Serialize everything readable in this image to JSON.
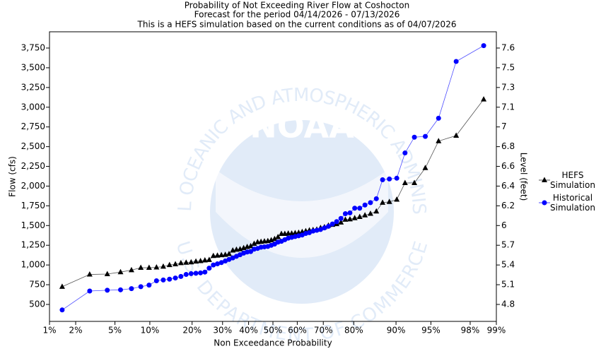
{
  "chart_data": {
    "type": "scatter-line",
    "title": "Probability of Not Exceeding River Flow at Coshocton",
    "subtitle": "Forecast for the period  04/14/2026 - 07/13/2026",
    "note": "This is a HEFS simulation based on the current conditions as of 04/07/2026",
    "x_label": "Non Exceedance Probability",
    "y_label": "Flow (cfs)",
    "y2_label": "Level (feet)",
    "x_scale": "normal-probability",
    "xlim": [
      1,
      99
    ],
    "xticks": [
      {
        "value": 1,
        "label": "1%"
      },
      {
        "value": 2,
        "label": "2%"
      },
      {
        "value": 5,
        "label": "5%"
      },
      {
        "value": 10,
        "label": "10%"
      },
      {
        "value": 20,
        "label": "20%"
      },
      {
        "value": 30,
        "label": "30%"
      },
      {
        "value": 40,
        "label": "40%"
      },
      {
        "value": 50,
        "label": "50%"
      },
      {
        "value": 60,
        "label": "60%"
      },
      {
        "value": 70,
        "label": "70%"
      },
      {
        "value": 80,
        "label": "80%"
      },
      {
        "value": 90,
        "label": "90%"
      },
      {
        "value": 95,
        "label": "95%"
      },
      {
        "value": 98,
        "label": "98%"
      },
      {
        "value": 99,
        "label": "99%"
      }
    ],
    "ylim": [
      285,
      3956
    ],
    "yticks": [
      {
        "value": 500,
        "label": "500"
      },
      {
        "value": 750,
        "label": "750"
      },
      {
        "value": 1000,
        "label": "1,000"
      },
      {
        "value": 1250,
        "label": "1,250"
      },
      {
        "value": 1500,
        "label": "1,500"
      },
      {
        "value": 1750,
        "label": "1,750"
      },
      {
        "value": 2000,
        "label": "2,000"
      },
      {
        "value": 2250,
        "label": "2,250"
      },
      {
        "value": 2500,
        "label": "2,500"
      },
      {
        "value": 2750,
        "label": "2,750"
      },
      {
        "value": 3000,
        "label": "3,000"
      },
      {
        "value": 3250,
        "label": "3,250"
      },
      {
        "value": 3500,
        "label": "3,500"
      },
      {
        "value": 3750,
        "label": "3,750"
      }
    ],
    "y2ticks": [
      4.8,
      5.1,
      5.4,
      5.7,
      6.0,
      6.2,
      6.4,
      6.6,
      6.8,
      7.0,
      7.1,
      7.3,
      7.5,
      7.6
    ],
    "y2ticks_aligned_with": "yticks",
    "grid": false,
    "x": [
      1.41,
      2.82,
      4.23,
      5.63,
      7.04,
      8.45,
      9.86,
      11.27,
      12.68,
      14.08,
      15.49,
      16.9,
      18.31,
      19.72,
      21.13,
      22.54,
      23.94,
      25.35,
      26.76,
      28.17,
      29.58,
      30.99,
      32.39,
      33.8,
      35.21,
      36.62,
      38.03,
      39.44,
      40.85,
      42.25,
      43.66,
      45.07,
      46.48,
      47.89,
      49.3,
      50.7,
      52.11,
      53.52,
      54.93,
      56.34,
      57.75,
      59.15,
      60.56,
      61.97,
      63.38,
      64.79,
      66.2,
      67.61,
      69.01,
      70.42,
      71.83,
      73.24,
      74.65,
      76.06,
      77.46,
      78.87,
      80.28,
      81.69,
      83.1,
      84.51,
      85.92,
      87.32,
      88.73,
      90.14,
      91.55,
      92.96,
      94.37,
      95.77,
      97.18,
      98.59
    ],
    "series": [
      {
        "name": "HEFS Simulation",
        "color": "#000000",
        "marker": "triangle",
        "line_color": "#555555",
        "values": [
          725,
          880,
          885,
          910,
          935,
          965,
          965,
          970,
          980,
          1000,
          1010,
          1025,
          1030,
          1035,
          1045,
          1050,
          1060,
          1065,
          1115,
          1120,
          1125,
          1130,
          1140,
          1185,
          1195,
          1200,
          1215,
          1230,
          1240,
          1270,
          1290,
          1295,
          1300,
          1305,
          1315,
          1330,
          1355,
          1395,
          1395,
          1400,
          1400,
          1405,
          1410,
          1420,
          1430,
          1440,
          1445,
          1450,
          1470,
          1480,
          1500,
          1510,
          1520,
          1540,
          1575,
          1580,
          1595,
          1610,
          1630,
          1650,
          1680,
          1790,
          1800,
          1830,
          2040,
          2040,
          2230,
          2570,
          2640,
          3100
        ]
      },
      {
        "name": "Historical Simulation",
        "color": "#0000ff",
        "marker": "circle",
        "line_color": "#4d4dff",
        "values": [
          430,
          670,
          680,
          685,
          700,
          725,
          745,
          800,
          810,
          820,
          835,
          855,
          880,
          890,
          895,
          900,
          910,
          960,
          1000,
          1015,
          1030,
          1050,
          1070,
          1090,
          1110,
          1130,
          1150,
          1165,
          1170,
          1200,
          1210,
          1225,
          1230,
          1235,
          1250,
          1265,
          1290,
          1300,
          1320,
          1340,
          1350,
          1360,
          1370,
          1380,
          1400,
          1410,
          1430,
          1440,
          1450,
          1470,
          1490,
          1520,
          1550,
          1590,
          1650,
          1660,
          1720,
          1720,
          1760,
          1790,
          1840,
          2080,
          2090,
          2100,
          2420,
          2620,
          2630,
          2860,
          3580,
          3780
        ]
      }
    ],
    "watermark": {
      "logo": "NOAA",
      "top_text": "NATIONAL OCEANIC AND ATMOSPHERIC ADMINISTRATION",
      "bottom_text": "U.S. DEPARTMENT OF COMMERCE"
    }
  }
}
